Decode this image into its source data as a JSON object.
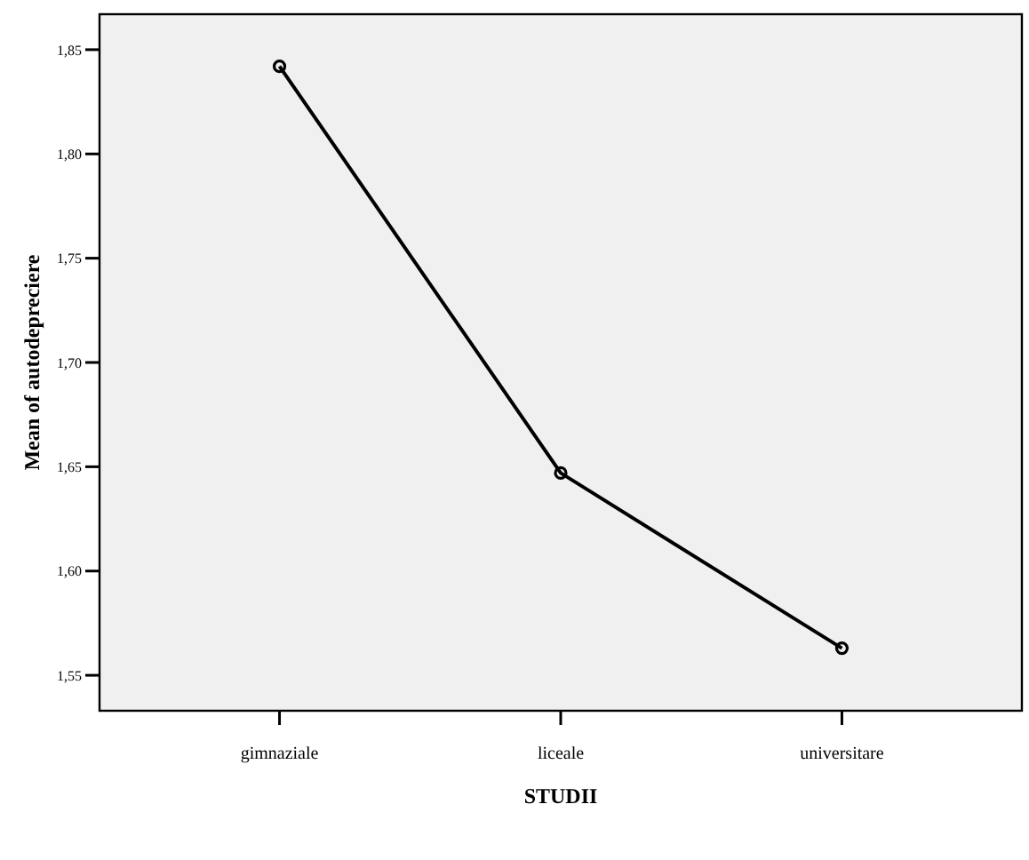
{
  "chart_data": {
    "type": "line",
    "xlabel": "STUDII",
    "ylabel": "Mean of autodepreciere",
    "categories": [
      "gimnaziale",
      "liceale",
      "universitare"
    ],
    "series": [
      {
        "color": "#000000",
        "values": [
          1.842,
          1.647,
          1.563
        ]
      }
    ],
    "ylim": [
      1.533,
      1.867
    ],
    "yticks": [
      {
        "value": 1.55,
        "label": "1,55"
      },
      {
        "value": 1.6,
        "label": "1,60"
      },
      {
        "value": 1.65,
        "label": "1,65"
      },
      {
        "value": 1.7,
        "label": "1,70"
      },
      {
        "value": 1.75,
        "label": "1,75"
      },
      {
        "value": 1.8,
        "label": "1,80"
      },
      {
        "value": 1.85,
        "label": "1,85"
      }
    ],
    "marker": "circle",
    "line_style": "solid",
    "grid": false
  }
}
